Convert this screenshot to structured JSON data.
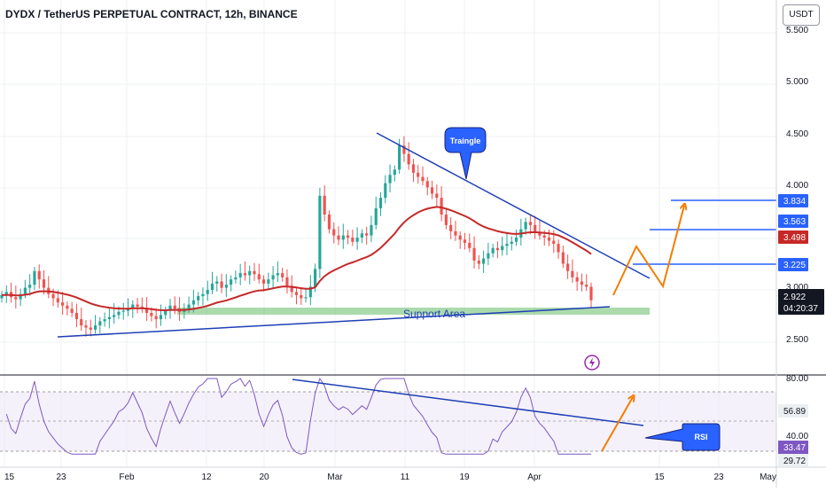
{
  "header": {
    "title": "DYDX / TetherUS PERPETUAL CONTRACT, 12h, BINANCE",
    "currency": "USDT"
  },
  "colors": {
    "background": "#ffffff",
    "up": "#26a69a",
    "down": "#ef5350",
    "ma": "#c62828",
    "trendline": "#1e3fb4",
    "arrow": "#f57c00",
    "rsi": "#7e57c2",
    "level": "#2962ff",
    "support_fill": "#66bb6a"
  },
  "chart_data": [
    {
      "type": "candlestick",
      "symbol": "DYDX / TetherUS PERPETUAL CONTRACT",
      "interval": "12h",
      "exchange": "BINANCE",
      "price_axis": {
        "ticks": [
          "5.000",
          "4.500",
          "4.000",
          "3.500",
          "3.000",
          "2.500"
        ],
        "top_partial": "5.500"
      },
      "time_axis": {
        "labels": [
          "15",
          "23",
          "Feb",
          "12",
          "20",
          "Mar",
          "11",
          "19",
          "Apr",
          "15",
          "23",
          "May"
        ]
      },
      "last_price": "2.922",
      "countdown": "04:20:37",
      "moving_average_value": "3.498",
      "levels": [
        "3.834",
        "3.563",
        "3.225"
      ],
      "close_series": [
        2.95,
        2.98,
        2.93,
        2.91,
        2.96,
        3.02,
        3.05,
        3.18,
        3.1,
        3.02,
        2.96,
        2.92,
        2.88,
        2.85,
        2.82,
        2.78,
        2.72,
        2.66,
        2.64,
        2.62,
        2.66,
        2.7,
        2.72,
        2.74,
        2.76,
        2.79,
        2.8,
        2.82,
        2.86,
        2.84,
        2.82,
        2.78,
        2.75,
        2.72,
        2.76,
        2.8,
        2.85,
        2.82,
        2.79,
        2.82,
        2.86,
        2.9,
        2.94,
        2.96,
        3.0,
        3.06,
        3.08,
        3.02,
        3.05,
        3.1,
        3.12,
        3.16,
        3.14,
        3.18,
        3.15,
        3.1,
        3.06,
        3.1,
        3.14,
        3.16,
        3.12,
        3.04,
        2.98,
        2.95,
        2.92,
        2.93,
        3.03,
        3.2,
        3.9,
        3.72,
        3.58,
        3.52,
        3.48,
        3.52,
        3.5,
        3.46,
        3.5,
        3.54,
        3.52,
        3.62,
        3.78,
        3.88,
        4.02,
        4.1,
        4.15,
        4.38,
        4.3,
        4.2,
        4.12,
        4.08,
        4.04,
        3.98,
        3.92,
        3.88,
        3.72,
        3.62,
        3.56,
        3.52,
        3.48,
        3.45,
        3.4,
        3.28,
        3.25,
        3.3,
        3.35,
        3.4,
        3.38,
        3.42,
        3.44,
        3.46,
        3.5,
        3.58,
        3.65,
        3.62,
        3.55,
        3.52,
        3.5,
        3.47,
        3.44,
        3.36,
        3.25,
        3.18,
        3.12,
        3.08,
        3.05,
        3.03,
        2.9
      ],
      "annotations": [
        "Traingle",
        "Support Area",
        "RSI"
      ]
    },
    {
      "type": "line",
      "name": "RSI",
      "ticks": [
        "80.00",
        "40.00"
      ],
      "labels": {
        "upper": "56.89",
        "lower": "33.47",
        "bottom": "29.72"
      }
    }
  ]
}
